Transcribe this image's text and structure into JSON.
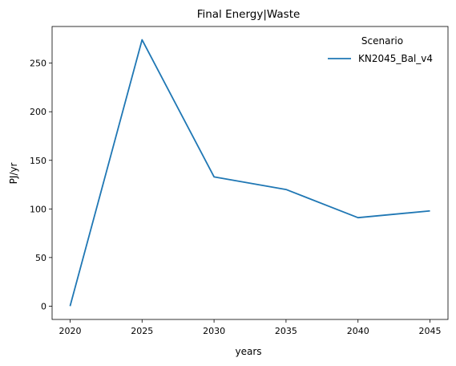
{
  "chart_data": {
    "type": "line",
    "title": "Final Energy|Waste",
    "xlabel": "years",
    "ylabel": "PJ/yr",
    "x": [
      2020,
      2025,
      2030,
      2035,
      2040,
      2045
    ],
    "series": [
      {
        "name": "KN2045_Bal_v4",
        "values": [
          0,
          274,
          133,
          120,
          91,
          98
        ],
        "color": "#1f77b4"
      }
    ],
    "xticks": [
      2020,
      2025,
      2030,
      2035,
      2040,
      2045
    ],
    "yticks": [
      0,
      50,
      100,
      150,
      200,
      250
    ],
    "xlim": [
      2018.75,
      2046.25
    ],
    "ylim": [
      -13.7,
      287.7
    ],
    "grid": false,
    "legend": {
      "title": "Scenario",
      "position": "top-right"
    }
  }
}
